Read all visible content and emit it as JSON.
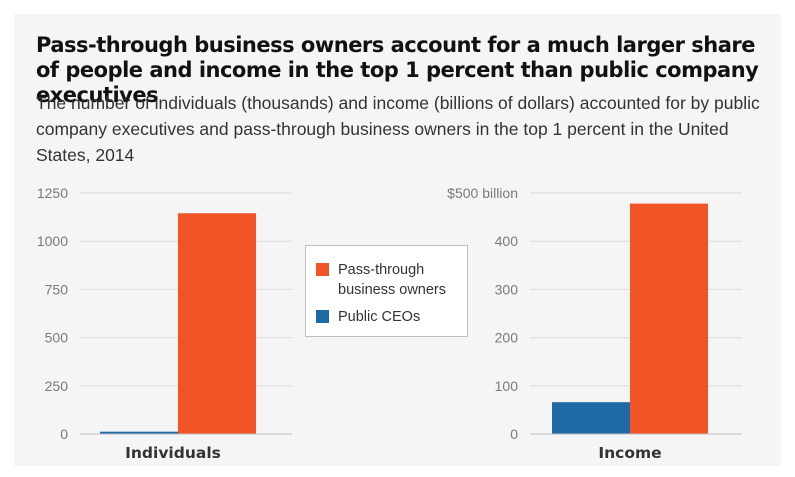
{
  "title": "Pass-through business owners account for a much larger share of people and income in the top 1 percent than public company executives",
  "subtitle": "The number of individuals (thousands) and income (billions of dollars) accounted for by public company executives and pass-through business owners in the top 1 percent in the United States, 2014",
  "colors": {
    "pass_through": "#f05427",
    "public_ceos": "#1f6aa5",
    "grid": "#dcdcdc",
    "axis_text": "#7a7a7a"
  },
  "legend": [
    {
      "label": "Pass-through business owners",
      "color": "#f05427"
    },
    {
      "label": "Public CEOs",
      "color": "#1f6aa5"
    }
  ],
  "chart_data": [
    {
      "type": "bar",
      "categories": [
        "Individuals"
      ],
      "series": [
        {
          "name": "Public CEOs",
          "values": [
            12
          ]
        },
        {
          "name": "Pass-through business owners",
          "values": [
            1145
          ]
        }
      ],
      "yticks": [
        "0",
        "250",
        "500",
        "750",
        "1000",
        "1250"
      ],
      "ylim": [
        0,
        1250
      ],
      "grid": true
    },
    {
      "type": "bar",
      "categories": [
        "Income"
      ],
      "series": [
        {
          "name": "Public CEOs",
          "values": [
            66
          ]
        },
        {
          "name": "Pass-through business owners",
          "values": [
            478
          ]
        }
      ],
      "yticks": [
        "0",
        "100",
        "200",
        "300",
        "400",
        "$500 billion"
      ],
      "ylim": [
        0,
        500
      ],
      "grid": true
    }
  ]
}
